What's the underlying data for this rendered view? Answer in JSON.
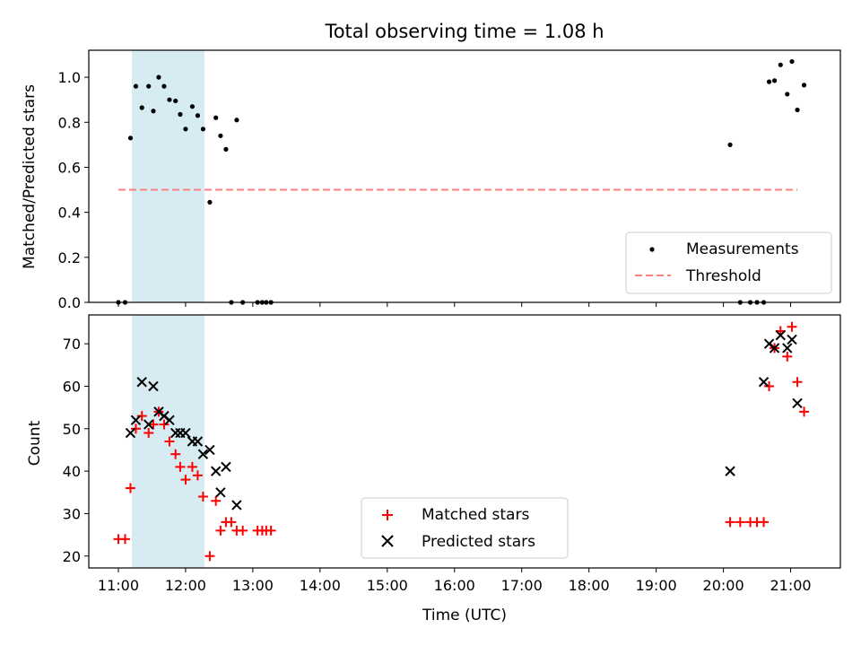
{
  "chart_data": [
    {
      "type": "scatter",
      "title": "Total observing time = 1.08 h",
      "ylabel": "Matched/Predicted stars",
      "xlabel": "",
      "ylim": [
        0,
        1.12
      ],
      "xlim": [
        10.56,
        21.74
      ],
      "shaded_span": {
        "start": 11.2,
        "end": 12.28,
        "color": "#add8e6"
      },
      "y_ticks": [
        0.0,
        0.2,
        0.4,
        0.6,
        0.8,
        1.0
      ],
      "y_tick_labels": [
        "0.0",
        "0.2",
        "0.4",
        "0.6",
        "0.8",
        "1.0"
      ],
      "legend_position": "lower-right",
      "series": [
        {
          "name": "Measurements",
          "marker": "dot",
          "color": "#000000",
          "x": [
            11.0,
            11.1,
            11.18,
            11.26,
            11.35,
            11.45,
            11.52,
            11.6,
            11.68,
            11.76,
            11.85,
            11.92,
            12.0,
            12.1,
            12.18,
            12.26,
            12.36,
            12.45,
            12.52,
            12.6,
            12.68,
            12.76,
            12.85,
            13.07,
            13.14,
            13.2,
            13.27,
            20.1,
            20.25,
            20.4,
            20.5,
            20.6,
            20.68,
            20.76,
            20.85,
            20.95,
            21.02,
            21.1,
            21.2
          ],
          "y": [
            0.0,
            0.0,
            0.73,
            0.96,
            0.865,
            0.96,
            0.85,
            1.0,
            0.96,
            0.9,
            0.895,
            0.835,
            0.77,
            0.87,
            0.83,
            0.77,
            0.445,
            0.82,
            0.74,
            0.68,
            0.0,
            0.81,
            0.0,
            0.0,
            0.0,
            0.0,
            0.0,
            0.7,
            0.0,
            0.0,
            0.0,
            0.0,
            0.98,
            0.985,
            1.055,
            0.925,
            1.07,
            0.855,
            0.965
          ]
        },
        {
          "name": "Threshold",
          "style": "dashed",
          "color": "#ff7f7f",
          "x": [
            11.0,
            21.1
          ],
          "y": [
            0.5,
            0.5
          ]
        }
      ]
    },
    {
      "type": "scatter",
      "title": "",
      "xlabel": "Time (UTC)",
      "ylabel": "Count",
      "ylim": [
        17.2,
        76.8
      ],
      "xlim": [
        10.56,
        21.74
      ],
      "shaded_span": {
        "start": 11.2,
        "end": 12.28,
        "color": "#add8e6"
      },
      "y_ticks": [
        20,
        30,
        40,
        50,
        60,
        70
      ],
      "y_tick_labels": [
        "20",
        "30",
        "40",
        "50",
        "60",
        "70"
      ],
      "x_ticks": [
        11,
        12,
        13,
        14,
        15,
        16,
        17,
        18,
        19,
        20,
        21
      ],
      "x_tick_labels": [
        "11:00",
        "12:00",
        "13:00",
        "14:00",
        "15:00",
        "16:00",
        "17:00",
        "18:00",
        "19:00",
        "20:00",
        "21:00"
      ],
      "legend_position": "lower-center",
      "series": [
        {
          "name": "Matched stars",
          "marker": "plus",
          "color": "#ff0000",
          "x": [
            11.0,
            11.1,
            11.18,
            11.26,
            11.35,
            11.45,
            11.52,
            11.6,
            11.68,
            11.76,
            11.85,
            11.92,
            12.0,
            12.1,
            12.18,
            12.26,
            12.36,
            12.45,
            12.52,
            12.6,
            12.68,
            12.76,
            12.85,
            13.07,
            13.14,
            13.2,
            13.27,
            20.1,
            20.25,
            20.4,
            20.5,
            20.6,
            20.68,
            20.76,
            20.85,
            20.95,
            21.02,
            21.1,
            21.2
          ],
          "y": [
            24,
            24,
            36,
            50,
            53,
            49,
            51,
            54,
            51,
            47,
            44,
            41,
            38,
            41,
            39,
            34,
            20,
            33,
            26,
            28,
            28,
            26,
            26,
            26,
            26,
            26,
            26,
            28,
            28,
            28,
            28,
            28,
            60,
            69,
            73,
            67,
            74,
            61,
            54
          ]
        },
        {
          "name": "Predicted stars",
          "marker": "x",
          "color": "#000000",
          "x": [
            11.18,
            11.26,
            11.35,
            11.45,
            11.52,
            11.6,
            11.68,
            11.76,
            11.85,
            11.92,
            12.0,
            12.1,
            12.18,
            12.26,
            12.36,
            12.45,
            12.52,
            12.6,
            12.76,
            20.1,
            20.6,
            20.68,
            20.76,
            20.85,
            20.95,
            21.02,
            21.1
          ],
          "y": [
            49,
            52,
            61,
            51,
            60,
            54,
            53,
            52,
            49,
            49,
            49,
            47,
            47,
            44,
            45,
            40,
            35,
            41,
            32,
            40,
            61,
            70,
            69,
            72,
            69,
            71,
            56
          ]
        }
      ]
    }
  ]
}
